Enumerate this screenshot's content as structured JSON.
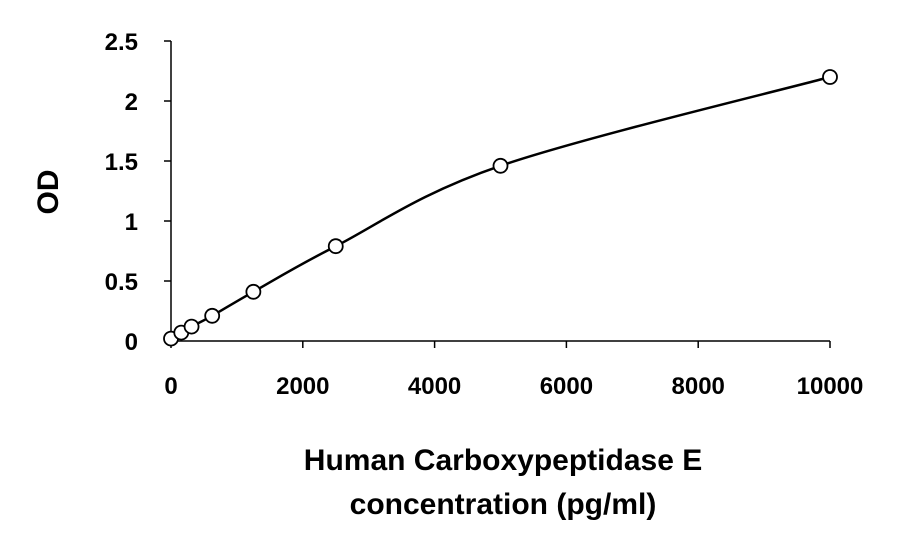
{
  "chart_data": {
    "type": "scatter",
    "title": "",
    "xlabel_lines": [
      "Human Carboxypeptidase E",
      "concentration (pg/ml)"
    ],
    "ylabel": "OD",
    "xlim": [
      0,
      10000
    ],
    "ylim": [
      0,
      2.5
    ],
    "x_ticks": [
      "0",
      "2000",
      "4000",
      "6000",
      "8000",
      "10000"
    ],
    "y_ticks": [
      "0",
      "0.5",
      "1",
      "1.5",
      "2",
      "2.5"
    ],
    "grid": false,
    "legend": "none",
    "series": [
      {
        "x": [
          0,
          156,
          312,
          625,
          1250,
          2500,
          5000,
          10000
        ],
        "y": [
          0.02,
          0.07,
          0.12,
          0.21,
          0.41,
          0.79,
          1.46,
          2.2
        ],
        "fit": "smooth"
      }
    ],
    "colors": {
      "line": "#000000",
      "marker_fill": "#ffffff",
      "marker_stroke": "#000000"
    }
  }
}
